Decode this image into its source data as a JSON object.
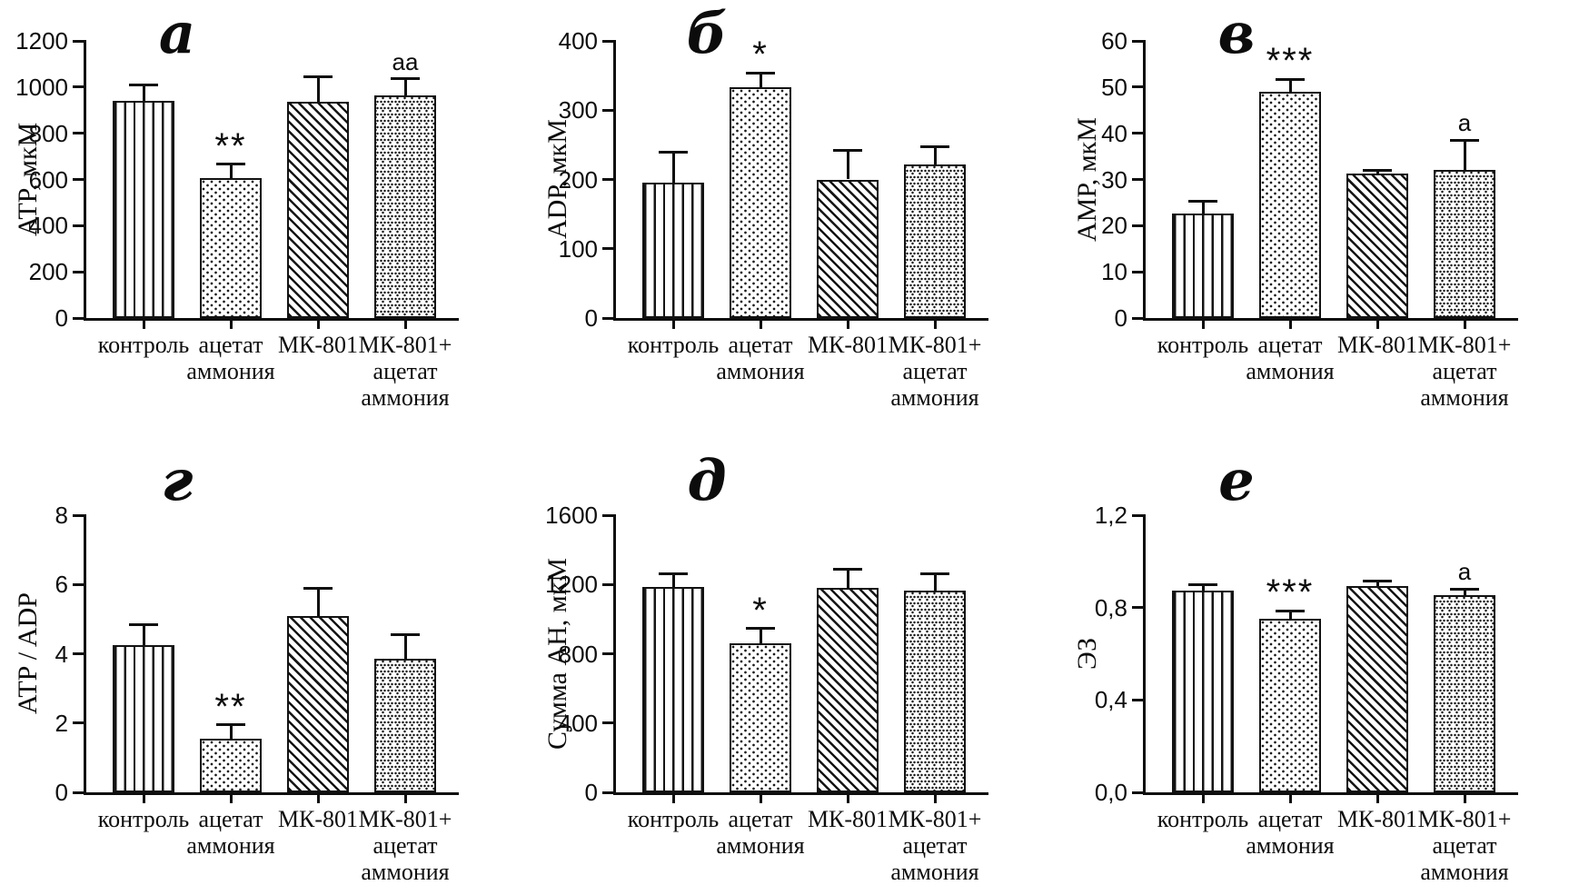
{
  "figure": {
    "background_color": "#ffffff",
    "ink_color": "#121212",
    "panel_letters": [
      "а",
      "б",
      "в",
      "г",
      "д",
      "е"
    ],
    "bar_patterns": [
      "vertical-stripes",
      "fine-dots",
      "diagonal-stripes",
      "triple-dots"
    ],
    "category_lines": [
      [
        "контроль"
      ],
      [
        "ацетат",
        "аммония"
      ],
      [
        "МК-801"
      ],
      [
        "МК-801+",
        "ацетат",
        "аммония"
      ]
    ]
  },
  "chart_data": [
    {
      "panel_letter": "а",
      "type": "bar",
      "ylabel": "ATP, мкМ",
      "ylim": [
        0,
        1200
      ],
      "yticks": [
        0,
        200,
        400,
        600,
        800,
        1000,
        1200
      ],
      "ytick_labels": [
        "0",
        "200",
        "400",
        "600",
        "800",
        "1000",
        "1200"
      ],
      "categories": [
        "контроль",
        "ацетат аммония",
        "МК-801",
        "МК-801+ ацетат аммония"
      ],
      "values": [
        940,
        605,
        935,
        965
      ],
      "errors_plus": [
        70,
        60,
        110,
        70
      ],
      "significance": [
        "",
        "**",
        "",
        "аа"
      ],
      "grid": false,
      "legend": "none"
    },
    {
      "panel_letter": "б",
      "type": "bar",
      "ylabel": "ADP, мкМ",
      "ylim": [
        0,
        400
      ],
      "yticks": [
        0,
        100,
        200,
        300,
        400
      ],
      "ytick_labels": [
        "0",
        "100",
        "200",
        "300",
        "400"
      ],
      "categories": [
        "контроль",
        "ацетат аммония",
        "МК-801",
        "МК-801+ ацетат аммония"
      ],
      "values": [
        196,
        333,
        200,
        222
      ],
      "errors_plus": [
        44,
        21,
        42,
        25
      ],
      "significance": [
        "",
        "*",
        "",
        ""
      ],
      "grid": false,
      "legend": "none"
    },
    {
      "panel_letter": "в",
      "type": "bar",
      "ylabel": "AMP, мкМ",
      "ylim": [
        0,
        60
      ],
      "yticks": [
        0,
        10,
        20,
        30,
        40,
        50,
        60
      ],
      "ytick_labels": [
        "0",
        "10",
        "20",
        "30",
        "40",
        "50",
        "60"
      ],
      "categories": [
        "контроль",
        "ацетат аммония",
        "МК-801",
        "МК-801+ ацетат аммония"
      ],
      "values": [
        22.6,
        49,
        31.2,
        32
      ],
      "errors_plus": [
        2.6,
        2.7,
        0.8,
        6.5
      ],
      "significance": [
        "",
        "***",
        "",
        "а"
      ],
      "grid": false,
      "legend": "none"
    },
    {
      "panel_letter": "г",
      "type": "bar",
      "ylabel": "ATP / ADP",
      "ylim": [
        0,
        8
      ],
      "yticks": [
        0,
        2,
        4,
        6,
        8
      ],
      "ytick_labels": [
        "0",
        "2",
        "4",
        "6",
        "8"
      ],
      "categories": [
        "контроль",
        "ацетат аммония",
        "МК-801",
        "МК-801+ ацетат аммония"
      ],
      "values": [
        4.25,
        1.55,
        5.1,
        3.85
      ],
      "errors_plus": [
        0.6,
        0.4,
        0.8,
        0.7
      ],
      "significance": [
        "",
        "**",
        "",
        ""
      ],
      "grid": false,
      "legend": "none"
    },
    {
      "panel_letter": "д",
      "type": "bar",
      "ylabel": "Сумма АН, мкМ",
      "ylim": [
        0,
        1600
      ],
      "yticks": [
        0,
        400,
        800,
        1200,
        1600
      ],
      "ytick_labels": [
        "0",
        "400",
        "800",
        "1200",
        "1600"
      ],
      "categories": [
        "контроль",
        "ацетат аммония",
        "МК-801",
        "МК-801+ ацетат аммония"
      ],
      "values": [
        1185,
        860,
        1180,
        1165
      ],
      "errors_plus": [
        75,
        85,
        110,
        95
      ],
      "significance": [
        "",
        "*",
        "",
        ""
      ],
      "grid": false,
      "legend": "none"
    },
    {
      "panel_letter": "е",
      "type": "bar",
      "ylabel": "ЭЗ",
      "ylim": [
        0,
        1.2
      ],
      "yticks": [
        0,
        0.4,
        0.8,
        1.2
      ],
      "ytick_labels": [
        "0,0",
        "0,4",
        "0,8",
        "1,2"
      ],
      "categories": [
        "контроль",
        "ацетат аммония",
        "МК-801",
        "МК-801+ ацетат аммония"
      ],
      "values": [
        0.875,
        0.75,
        0.895,
        0.855
      ],
      "errors_plus": [
        0.025,
        0.035,
        0.02,
        0.025
      ],
      "significance": [
        "",
        "***",
        "",
        "а"
      ],
      "grid": false,
      "legend": "none"
    }
  ]
}
